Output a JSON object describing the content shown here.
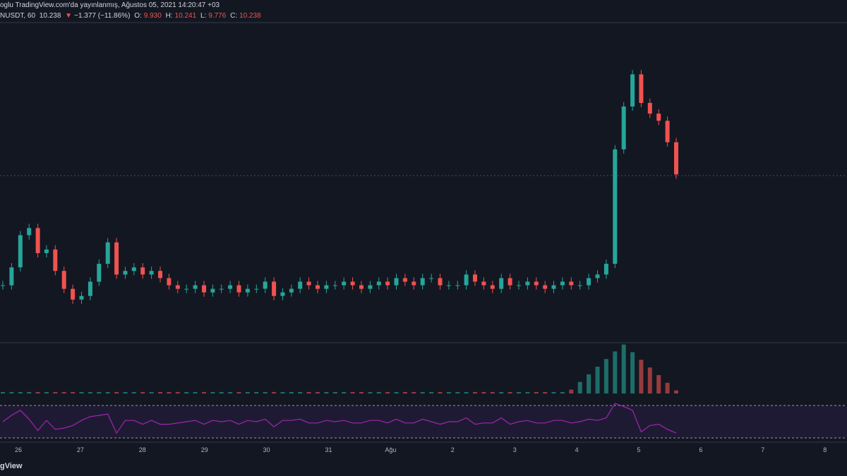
{
  "header": {
    "publish_text": "oglu TradingView.com'da yayınlanmış, Ağustos 05, 2021 14:20:47 +03",
    "symbol": "NUSDT, 60",
    "last": "10.238",
    "change_arrow": "▼",
    "change": "−1.377 (−11.86%)",
    "open_label": "O:",
    "open": "9.930",
    "high_label": "H:",
    "high": "10.241",
    "low_label": "L:",
    "low": "9.776",
    "close_label": "C:",
    "close": "10.238"
  },
  "footer": {
    "brand": "gView"
  },
  "colors": {
    "background": "#131722",
    "up": "#26a69a",
    "down": "#ef5350",
    "rsi": "#9c27b0",
    "rsi_band": "#2a1e45"
  },
  "chart_data": {
    "type": "candlestick",
    "title": "",
    "interval": "60",
    "x_tick_labels": [
      "26",
      "27",
      "28",
      "29",
      "30",
      "31",
      "Ağu",
      "2",
      "3",
      "4",
      "5",
      "6",
      "7",
      "8"
    ],
    "x_tick_dates": [
      "2021-07-26",
      "2021-07-27",
      "2021-07-28",
      "2021-07-29",
      "2021-07-30",
      "2021-07-31",
      "2021-08-01",
      "2021-08-02",
      "2021-08-03",
      "2021-08-04",
      "2021-08-05",
      "2021-08-06",
      "2021-08-07",
      "2021-08-08"
    ],
    "last_price": 10.238,
    "price_range_est": [
      4.3,
      11.4
    ],
    "close_series_est": [
      5.0,
      5.5,
      6.4,
      6.6,
      5.9,
      6.0,
      5.4,
      4.9,
      4.6,
      4.7,
      5.1,
      5.6,
      6.2,
      5.3,
      5.4,
      5.5,
      5.3,
      5.4,
      5.2,
      5.0,
      4.9,
      4.9,
      5.0,
      4.8,
      4.9,
      4.9,
      5.0,
      4.8,
      4.9,
      4.9,
      5.1,
      4.7,
      4.8,
      4.9,
      5.1,
      5.0,
      4.9,
      5.0,
      5.0,
      5.1,
      5.0,
      4.9,
      5.0,
      5.1,
      5.0,
      5.2,
      5.1,
      5.0,
      5.2,
      5.2,
      5.0,
      5.0,
      5.0,
      5.3,
      5.1,
      5.0,
      4.9,
      5.2,
      5.0,
      5.0,
      5.1,
      5.0,
      4.9,
      5.0,
      5.1,
      5.0,
      5.0,
      5.2,
      5.3,
      5.6,
      8.8,
      10.0,
      10.9,
      10.1,
      9.8,
      9.6,
      9.0,
      8.1
    ],
    "volume_spike_est": {
      "date": "2021-08-04",
      "relative_peak": 1.0
    },
    "indicators": [
      "Volume",
      "RSI"
    ]
  }
}
